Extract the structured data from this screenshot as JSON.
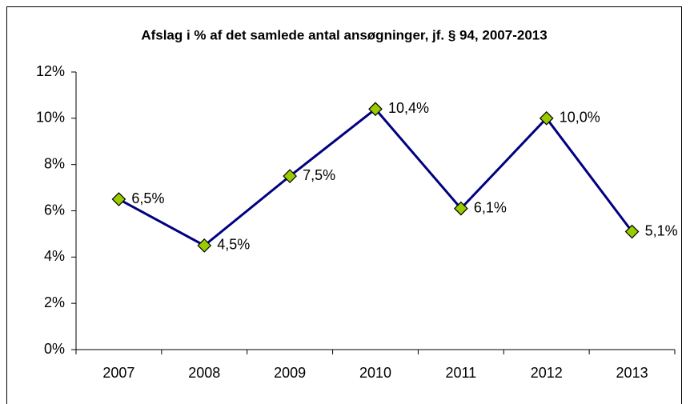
{
  "chart_data": {
    "type": "line",
    "title": "Afslag i % af det samlede antal ansøgninger, jf. § 94, 2007-2013",
    "categories": [
      "2007",
      "2008",
      "2009",
      "2010",
      "2011",
      "2012",
      "2013"
    ],
    "values": [
      6.5,
      4.5,
      7.5,
      10.4,
      6.1,
      10.0,
      5.1
    ],
    "value_labels": [
      "6,5%",
      "4,5%",
      "7,5%",
      "10,4%",
      "6,1%",
      "10,0%",
      "5,1%"
    ],
    "color": "#000080",
    "marker_color": "#99cc00",
    "ylim": [
      0,
      12
    ],
    "yticks": [
      {
        "value": 0,
        "label": "0%"
      },
      {
        "value": 2,
        "label": "2%"
      },
      {
        "value": 4,
        "label": "4%"
      },
      {
        "value": 6,
        "label": "6%"
      },
      {
        "value": 8,
        "label": "8%"
      },
      {
        "value": 10,
        "label": "10%"
      },
      {
        "value": 12,
        "label": "12%"
      }
    ],
    "grid": false
  }
}
